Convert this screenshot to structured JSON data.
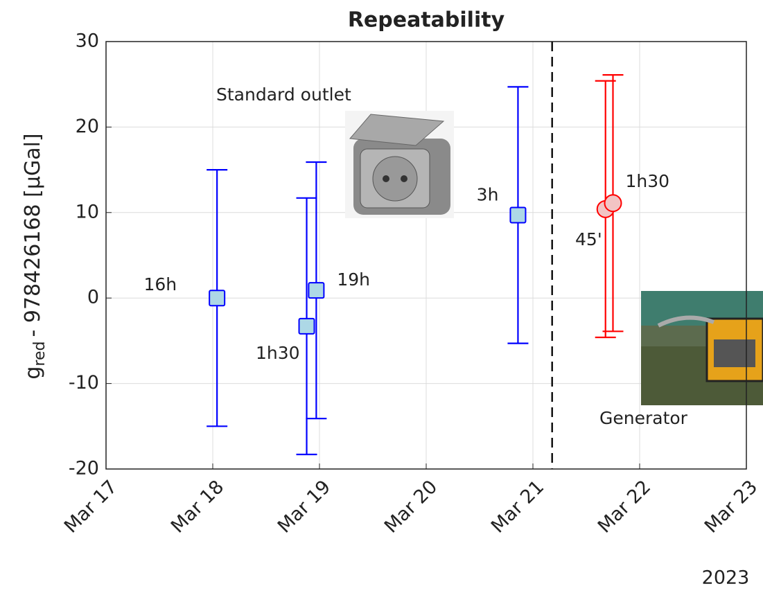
{
  "chart_data": {
    "type": "errorbar",
    "title": "Repeatability",
    "ylabel": {
      "base": "g",
      "sub": "red",
      "rest": "- 978426168 [µGal]"
    },
    "xlim": [
      17,
      23
    ],
    "xticks": [
      {
        "value": 17,
        "label": "Mar 17"
      },
      {
        "value": 18,
        "label": "Mar 18"
      },
      {
        "value": 19,
        "label": "Mar 19"
      },
      {
        "value": 20,
        "label": "Mar 20"
      },
      {
        "value": 21,
        "label": "Mar 21"
      },
      {
        "value": 22,
        "label": "Mar 22"
      },
      {
        "value": 23,
        "label": "Mar 23"
      }
    ],
    "xaxis_year": "2023",
    "ylim": [
      -20,
      30
    ],
    "yticks": [
      -20,
      -10,
      0,
      10,
      20,
      30
    ],
    "grid": true,
    "separator_x": 21.18,
    "series": [
      {
        "name": "Standard outlet",
        "color": "#0000ff",
        "marker": "square",
        "marker_fill": "#add8e6",
        "x": [
          18.04,
          18.88,
          18.97,
          20.86
        ],
        "values": [
          0,
          -3.3,
          0.9,
          9.7
        ],
        "errors": [
          15,
          15,
          15,
          15
        ],
        "labels": [
          "16h",
          "1h30",
          "19h",
          "3h"
        ]
      },
      {
        "name": "Generator",
        "color": "#ff0000",
        "marker": "circle",
        "marker_fill": "#f2c4c4",
        "x": [
          21.68,
          21.75
        ],
        "values": [
          10.4,
          11.1
        ],
        "errors": [
          15,
          15
        ],
        "labels": [
          "45'",
          "1h30"
        ]
      }
    ]
  }
}
